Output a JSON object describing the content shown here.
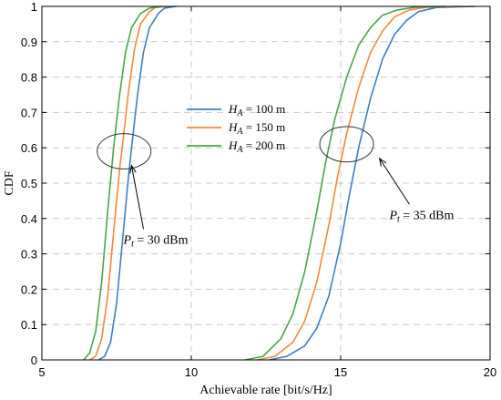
{
  "chart_data": {
    "type": "line",
    "xlabel": "Achievable rate [bit/s/Hz]",
    "ylabel": "CDF",
    "xlim": [
      5,
      20
    ],
    "ylim": [
      0,
      1
    ],
    "xticks": [
      5,
      10,
      15,
      20
    ],
    "yticks": [
      0,
      0.1,
      0.2,
      0.3,
      0.4,
      0.5,
      0.6,
      0.7,
      0.8,
      0.9,
      1
    ],
    "grid": true,
    "legend_position": "center",
    "series": [
      {
        "name_prefix": "H",
        "name_sub": "A",
        "name_suffix": "= 100 m",
        "color": "#3f7fbf",
        "groups": [
          [
            [
              6.9,
              0
            ],
            [
              7.1,
              0.01
            ],
            [
              7.3,
              0.05
            ],
            [
              7.5,
              0.16
            ],
            [
              7.7,
              0.34
            ],
            [
              7.9,
              0.52
            ],
            [
              8.0,
              0.6
            ],
            [
              8.2,
              0.75
            ],
            [
              8.4,
              0.87
            ],
            [
              8.6,
              0.94
            ],
            [
              8.9,
              0.98
            ],
            [
              9.1,
              0.995
            ],
            [
              9.5,
              1.0
            ]
          ],
          [
            [
              12.6,
              0
            ],
            [
              13.2,
              0.01
            ],
            [
              13.8,
              0.04
            ],
            [
              14.2,
              0.09
            ],
            [
              14.6,
              0.18
            ],
            [
              15.0,
              0.33
            ],
            [
              15.3,
              0.47
            ],
            [
              15.6,
              0.6
            ],
            [
              16.0,
              0.74
            ],
            [
              16.4,
              0.85
            ],
            [
              16.8,
              0.92
            ],
            [
              17.2,
              0.96
            ],
            [
              17.6,
              0.985
            ],
            [
              18.2,
              0.997
            ],
            [
              19.5,
              1.0
            ]
          ]
        ]
      },
      {
        "name_prefix": "H",
        "name_sub": "A",
        "name_suffix": "= 150 m",
        "color": "#f0893a",
        "groups": [
          [
            [
              6.6,
              0
            ],
            [
              6.8,
              0.01
            ],
            [
              7.0,
              0.06
            ],
            [
              7.2,
              0.18
            ],
            [
              7.4,
              0.36
            ],
            [
              7.6,
              0.54
            ],
            [
              7.7,
              0.61
            ],
            [
              7.9,
              0.76
            ],
            [
              8.1,
              0.88
            ],
            [
              8.3,
              0.95
            ],
            [
              8.6,
              0.985
            ],
            [
              8.8,
              0.997
            ],
            [
              9.2,
              1.0
            ]
          ],
          [
            [
              12.2,
              0
            ],
            [
              12.8,
              0.01
            ],
            [
              13.4,
              0.05
            ],
            [
              13.8,
              0.11
            ],
            [
              14.2,
              0.22
            ],
            [
              14.6,
              0.38
            ],
            [
              14.9,
              0.52
            ],
            [
              15.2,
              0.64
            ],
            [
              15.6,
              0.77
            ],
            [
              16.0,
              0.87
            ],
            [
              16.4,
              0.93
            ],
            [
              16.8,
              0.97
            ],
            [
              17.3,
              0.99
            ],
            [
              17.9,
              0.998
            ],
            [
              19.0,
              1.0
            ]
          ]
        ]
      },
      {
        "name_prefix": "H",
        "name_sub": "A",
        "name_suffix": "= 200 m",
        "color": "#4aa44a",
        "groups": [
          [
            [
              6.4,
              0
            ],
            [
              6.6,
              0.02
            ],
            [
              6.8,
              0.08
            ],
            [
              7.0,
              0.22
            ],
            [
              7.2,
              0.42
            ],
            [
              7.4,
              0.6
            ],
            [
              7.6,
              0.75
            ],
            [
              7.8,
              0.87
            ],
            [
              8.0,
              0.94
            ],
            [
              8.3,
              0.98
            ],
            [
              8.6,
              0.995
            ],
            [
              9.0,
              1.0
            ]
          ],
          [
            [
              11.8,
              0
            ],
            [
              12.4,
              0.01
            ],
            [
              13.0,
              0.06
            ],
            [
              13.4,
              0.13
            ],
            [
              13.8,
              0.25
            ],
            [
              14.2,
              0.42
            ],
            [
              14.5,
              0.56
            ],
            [
              14.8,
              0.68
            ],
            [
              15.2,
              0.8
            ],
            [
              15.6,
              0.89
            ],
            [
              16.0,
              0.94
            ],
            [
              16.4,
              0.975
            ],
            [
              16.9,
              0.99
            ],
            [
              17.5,
              0.998
            ],
            [
              18.5,
              1.0
            ]
          ]
        ]
      }
    ],
    "annotations": [
      {
        "label_prefix": "P",
        "label_sub": "t",
        "label_suffix": " = 30 dBm",
        "ellipse_center": [
          7.75,
          0.59
        ],
        "ellipse_rx": 0.9,
        "ellipse_ry": 0.05,
        "arrow_tip": [
          8.0,
          0.55
        ],
        "text_anchor": [
          8.4,
          0.37
        ]
      },
      {
        "label_prefix": "P",
        "label_sub": "t",
        "label_suffix": " = 35 dBm",
        "ellipse_center": [
          15.2,
          0.61
        ],
        "ellipse_rx": 0.9,
        "ellipse_ry": 0.05,
        "arrow_tip": [
          16.3,
          0.57
        ],
        "text_anchor": [
          17.3,
          0.44
        ]
      }
    ]
  }
}
